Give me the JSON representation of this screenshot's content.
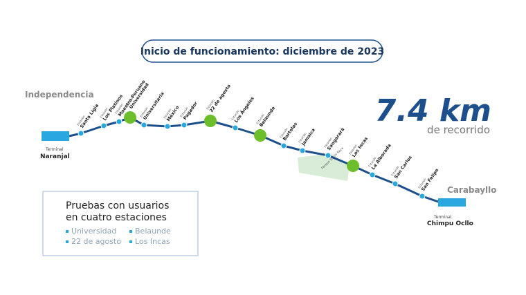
{
  "header": {
    "title": "Inicio de funcionamiento: diciembre de 2023"
  },
  "line": {
    "start_district": "Independencia",
    "end_district": "Carabayllo",
    "start_terminal": {
      "label": "Terminal",
      "name": "Naranjal"
    },
    "end_terminal": {
      "label": "Terminal",
      "name": "Chimpu Ocllo"
    },
    "park": "Parque Sinchi Roca",
    "stations": [
      {
        "prefix": "Estación",
        "name": "Santa Ligia",
        "highlight": false
      },
      {
        "prefix": "Estación",
        "name": "Los Platinos",
        "highlight": false
      },
      {
        "prefix": "Estación",
        "name": "Maestro Peruano",
        "highlight": false
      },
      {
        "prefix": "Estación",
        "name": "Universidad",
        "highlight": true
      },
      {
        "prefix": "Estación",
        "name": "Universitaria",
        "highlight": false
      },
      {
        "prefix": "Estación",
        "name": "México",
        "highlight": false
      },
      {
        "prefix": "Estación",
        "name": "Pagador",
        "highlight": false
      },
      {
        "prefix": "Estación",
        "name": "22 de agosto",
        "highlight": true
      },
      {
        "prefix": "Estación",
        "name": "Los Ángeles",
        "highlight": false
      },
      {
        "prefix": "Estación",
        "name": "Belaunde",
        "highlight": true
      },
      {
        "prefix": "Estación",
        "name": "Bartolas",
        "highlight": false
      },
      {
        "prefix": "Estación",
        "name": "Jamaica",
        "highlight": false
      },
      {
        "prefix": "Estación",
        "name": "Sangarará",
        "highlight": false
      },
      {
        "prefix": "Estación",
        "name": "Los Incas",
        "highlight": true
      },
      {
        "prefix": "Estación",
        "name": "La Alborada",
        "highlight": false
      },
      {
        "prefix": "Estación",
        "name": "San Carlos",
        "highlight": false
      },
      {
        "prefix": "Estación",
        "name": "San Felipe",
        "highlight": false
      }
    ]
  },
  "distance": {
    "value": "7.4 km",
    "caption": "de recorrido"
  },
  "legend": {
    "title": "Pruebas con usuarios en cuatro estaciones",
    "items": [
      "Universidad",
      "Belaunde",
      "22 de agosto",
      "Los Incas"
    ]
  }
}
